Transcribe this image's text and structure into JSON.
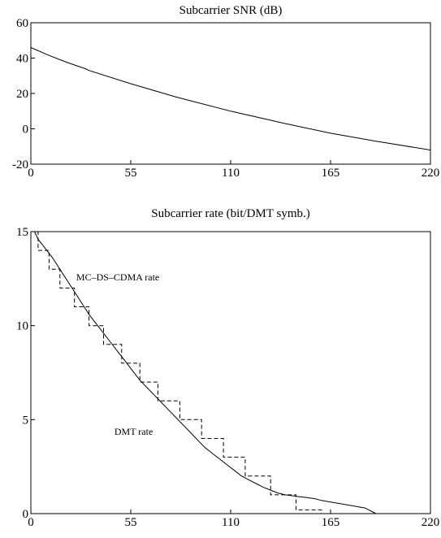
{
  "chart_data": [
    {
      "type": "line",
      "title": "Subcarrier SNR (dB)",
      "xlabel": "",
      "ylabel": "",
      "xlim": [
        0,
        220
      ],
      "ylim": [
        -20,
        60
      ],
      "xticks": [
        0,
        55,
        110,
        165,
        220
      ],
      "yticks": [
        -20,
        0,
        20,
        40,
        60
      ],
      "grid": false,
      "series": [
        {
          "style": "solid",
          "x": [
            0,
            10,
            20,
            30,
            32,
            55,
            80,
            110,
            140,
            165,
            190,
            220
          ],
          "y": [
            46,
            41.5,
            37.5,
            34,
            33,
            25.5,
            18,
            10,
            3,
            -2.5,
            -7,
            -12
          ]
        }
      ]
    },
    {
      "type": "line",
      "title": "Subcarrier rate (bit/DMT symb.)",
      "xlabel": "",
      "ylabel": "",
      "xlim": [
        0,
        220
      ],
      "ylim": [
        0,
        15
      ],
      "xticks": [
        0,
        55,
        110,
        165,
        220
      ],
      "yticks": [
        0,
        5,
        10,
        15
      ],
      "grid": false,
      "annotations": [
        {
          "text": "MC–DS–CDMA rate",
          "x": 25,
          "y": 12.4
        },
        {
          "text": "DMT rate",
          "x": 46,
          "y": 4.2
        }
      ],
      "series": [
        {
          "style": "solid",
          "x": [
            0,
            2,
            4,
            8,
            12,
            16,
            20,
            24,
            28,
            32,
            36,
            40,
            44,
            48,
            52,
            56,
            60,
            64,
            68,
            72,
            76,
            80,
            84,
            88,
            92,
            96,
            100,
            104,
            108,
            112,
            116,
            120,
            124,
            128,
            132,
            136,
            140,
            144,
            148,
            152,
            156,
            160,
            166,
            172,
            178,
            184,
            190
          ],
          "y": [
            15,
            15,
            14.6,
            14.1,
            13.6,
            13.0,
            12.4,
            11.8,
            11.2,
            10.6,
            10.1,
            9.6,
            9.1,
            8.6,
            8.1,
            7.6,
            7.1,
            6.7,
            6.3,
            5.9,
            5.5,
            5.1,
            4.7,
            4.3,
            3.9,
            3.5,
            3.2,
            2.9,
            2.6,
            2.3,
            2.0,
            1.8,
            1.6,
            1.4,
            1.25,
            1.1,
            1.0,
            0.95,
            0.9,
            0.85,
            0.8,
            0.7,
            0.6,
            0.5,
            0.4,
            0.3,
            0.0
          ]
        },
        {
          "style": "dashed",
          "x": [
            0,
            4,
            4,
            10,
            10,
            16,
            16,
            24,
            24,
            32,
            32,
            40,
            40,
            50,
            50,
            60,
            60,
            70,
            70,
            82,
            82,
            94,
            94,
            106,
            106,
            118,
            118,
            132,
            132,
            146,
            146,
            160,
            160
          ],
          "y": [
            15,
            15,
            14,
            14,
            13,
            13,
            12,
            12,
            11,
            11,
            10,
            10,
            9,
            9,
            8,
            8,
            7,
            7,
            6,
            6,
            5,
            5,
            4,
            4,
            3,
            3,
            2,
            2,
            1,
            1,
            0.2,
            0.2,
            0
          ]
        }
      ]
    }
  ]
}
